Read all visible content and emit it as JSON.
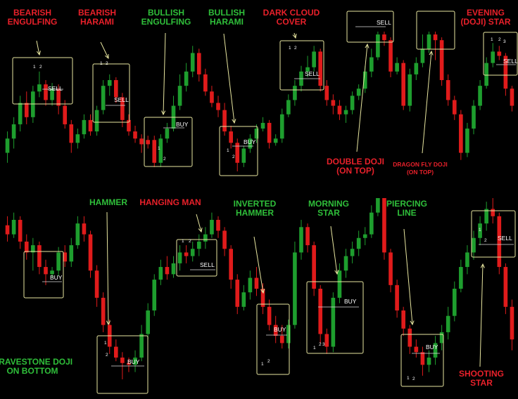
{
  "colors": {
    "bullish": "#1e9e2e",
    "bearish": "#e01b1b",
    "box": "#e8e6a0",
    "arrow": "#e8e6a0",
    "label_green": "#2fbf3a",
    "label_red": "#e8202a",
    "signal_text": "#ffffff",
    "background": "#000000"
  },
  "chart_data": [
    {
      "type": "candlestick",
      "panel": "top",
      "candles": [
        [
          0.15,
          0.25,
          0.08,
          0.3,
          1
        ],
        [
          0.25,
          0.35,
          0.18,
          0.4,
          1
        ],
        [
          0.35,
          0.5,
          0.3,
          0.55,
          1
        ],
        [
          0.5,
          0.4,
          0.35,
          0.58,
          0
        ],
        [
          0.4,
          0.58,
          0.36,
          0.62,
          1
        ],
        [
          0.58,
          0.63,
          0.54,
          0.72,
          1
        ],
        [
          0.63,
          0.52,
          0.48,
          0.66,
          0
        ],
        [
          0.52,
          0.6,
          0.48,
          0.64,
          1
        ],
        [
          0.6,
          0.48,
          0.42,
          0.63,
          0
        ],
        [
          0.48,
          0.35,
          0.32,
          0.52,
          0
        ],
        [
          0.35,
          0.22,
          0.15,
          0.38,
          0
        ],
        [
          0.22,
          0.28,
          0.18,
          0.32,
          1
        ],
        [
          0.28,
          0.38,
          0.25,
          0.42,
          1
        ],
        [
          0.38,
          0.3,
          0.27,
          0.42,
          0
        ],
        [
          0.3,
          0.45,
          0.27,
          0.48,
          1
        ],
        [
          0.45,
          0.62,
          0.42,
          0.66,
          1
        ],
        [
          0.62,
          0.66,
          0.55,
          0.7,
          1
        ],
        [
          0.66,
          0.54,
          0.5,
          0.68,
          0
        ],
        [
          0.54,
          0.38,
          0.33,
          0.57,
          0
        ],
        [
          0.38,
          0.3,
          0.27,
          0.42,
          0
        ],
        [
          0.3,
          0.25,
          0.22,
          0.34,
          0
        ],
        [
          0.25,
          0.21,
          0.15,
          0.28,
          0
        ],
        [
          0.21,
          0.24,
          0.18,
          0.27,
          0
        ],
        [
          0.24,
          0.08,
          0.05,
          0.27,
          0
        ],
        [
          0.08,
          0.25,
          0.05,
          0.28,
          1
        ],
        [
          0.25,
          0.32,
          0.22,
          0.36,
          1
        ],
        [
          0.32,
          0.48,
          0.3,
          0.55,
          1
        ],
        [
          0.48,
          0.62,
          0.45,
          0.7,
          1
        ],
        [
          0.62,
          0.72,
          0.58,
          0.78,
          1
        ],
        [
          0.72,
          0.85,
          0.68,
          0.9,
          1
        ],
        [
          0.85,
          0.7,
          0.65,
          0.88,
          0
        ],
        [
          0.7,
          0.58,
          0.55,
          0.74,
          0
        ],
        [
          0.58,
          0.5,
          0.47,
          0.62,
          0
        ],
        [
          0.5,
          0.45,
          0.4,
          0.55,
          0
        ],
        [
          0.45,
          0.3,
          0.27,
          0.5,
          0
        ],
        [
          0.3,
          0.22,
          0.18,
          0.34,
          0
        ],
        [
          0.22,
          0.08,
          0.02,
          0.25,
          0
        ],
        [
          0.08,
          0.18,
          0.05,
          0.2,
          1
        ],
        [
          0.18,
          0.25,
          0.15,
          0.28,
          1
        ],
        [
          0.25,
          0.32,
          0.22,
          0.35,
          1
        ],
        [
          0.32,
          0.36,
          0.3,
          0.4,
          1
        ],
        [
          0.36,
          0.22,
          0.18,
          0.38,
          0
        ],
        [
          0.22,
          0.25,
          0.2,
          0.28,
          1
        ],
        [
          0.25,
          0.42,
          0.22,
          0.46,
          1
        ],
        [
          0.42,
          0.52,
          0.4,
          0.56,
          1
        ],
        [
          0.52,
          0.62,
          0.48,
          0.66,
          1
        ],
        [
          0.62,
          0.72,
          0.58,
          0.76,
          1
        ],
        [
          0.72,
          0.75,
          0.68,
          0.83,
          1
        ],
        [
          0.75,
          0.86,
          0.72,
          0.9,
          1
        ],
        [
          0.86,
          0.62,
          0.58,
          0.88,
          0
        ],
        [
          0.62,
          0.52,
          0.48,
          0.66,
          0
        ],
        [
          0.52,
          0.48,
          0.42,
          0.56,
          0
        ],
        [
          0.48,
          0.42,
          0.38,
          0.52,
          0
        ],
        [
          0.42,
          0.45,
          0.36,
          0.48,
          1
        ],
        [
          0.45,
          0.55,
          0.42,
          0.58,
          1
        ],
        [
          0.55,
          0.6,
          0.52,
          0.63,
          1
        ],
        [
          0.6,
          0.72,
          0.57,
          0.76,
          1
        ],
        [
          0.72,
          0.82,
          0.68,
          0.88,
          1
        ],
        [
          0.82,
          0.98,
          0.8,
          1.0,
          1
        ],
        [
          0.98,
          0.94,
          0.9,
          1.0,
          0
        ],
        [
          0.94,
          0.72,
          0.68,
          0.96,
          0
        ],
        [
          0.72,
          0.78,
          0.7,
          0.82,
          1
        ],
        [
          0.78,
          0.48,
          0.45,
          0.8,
          0
        ],
        [
          0.48,
          0.7,
          0.44,
          0.74,
          1
        ],
        [
          0.7,
          0.78,
          0.66,
          0.82,
          1
        ],
        [
          0.78,
          0.88,
          0.75,
          0.98,
          1
        ],
        [
          0.88,
          0.98,
          0.85,
          1.0,
          1
        ],
        [
          0.98,
          0.94,
          0.8,
          1.0,
          0
        ],
        [
          0.94,
          0.66,
          0.62,
          0.96,
          0
        ],
        [
          0.66,
          0.52,
          0.48,
          0.7,
          0
        ],
        [
          0.52,
          0.42,
          0.38,
          0.55,
          0
        ],
        [
          0.42,
          0.15,
          0.1,
          0.45,
          0
        ],
        [
          0.15,
          0.32,
          0.12,
          0.36,
          1
        ],
        [
          0.32,
          0.48,
          0.28,
          0.52,
          1
        ],
        [
          0.48,
          0.62,
          0.45,
          0.66,
          1
        ],
        [
          0.62,
          0.78,
          0.6,
          0.82,
          1
        ],
        [
          0.78,
          0.86,
          0.75,
          0.92,
          1
        ],
        [
          0.86,
          0.83,
          0.8,
          0.9,
          0
        ],
        [
          0.83,
          0.6,
          0.55,
          0.85,
          0
        ],
        [
          0.6,
          0.48,
          0.44,
          0.62,
          0
        ]
      ]
    },
    {
      "type": "candlestick",
      "panel": "bottom",
      "candles": [
        [
          0.85,
          0.8,
          0.76,
          0.9,
          0
        ],
        [
          0.8,
          0.88,
          0.78,
          0.92,
          1
        ],
        [
          0.88,
          0.76,
          0.72,
          0.9,
          0
        ],
        [
          0.76,
          0.7,
          0.66,
          0.8,
          0
        ],
        [
          0.7,
          0.74,
          0.6,
          0.78,
          1
        ],
        [
          0.74,
          0.62,
          0.58,
          0.76,
          0
        ],
        [
          0.62,
          0.58,
          0.52,
          0.66,
          0
        ],
        [
          0.58,
          0.6,
          0.56,
          0.62,
          1
        ],
        [
          0.6,
          0.7,
          0.57,
          0.73,
          1
        ],
        [
          0.7,
          0.65,
          0.62,
          0.74,
          0
        ],
        [
          0.65,
          0.74,
          0.62,
          0.78,
          1
        ],
        [
          0.74,
          0.86,
          0.72,
          0.9,
          1
        ],
        [
          0.86,
          0.8,
          0.76,
          0.9,
          0
        ],
        [
          0.8,
          0.6,
          0.56,
          0.82,
          0
        ],
        [
          0.6,
          0.45,
          0.4,
          0.63,
          0
        ],
        [
          0.45,
          0.3,
          0.26,
          0.48,
          0
        ],
        [
          0.3,
          0.18,
          0.14,
          0.33,
          0
        ],
        [
          0.18,
          0.12,
          0.1,
          0.22,
          0
        ],
        [
          0.12,
          0.09,
          0.0,
          0.15,
          0
        ],
        [
          0.09,
          0.08,
          0.04,
          0.12,
          0
        ],
        [
          0.08,
          0.12,
          0.04,
          0.16,
          1
        ],
        [
          0.12,
          0.25,
          0.1,
          0.3,
          1
        ],
        [
          0.25,
          0.38,
          0.22,
          0.42,
          1
        ],
        [
          0.38,
          0.55,
          0.35,
          0.58,
          1
        ],
        [
          0.55,
          0.62,
          0.52,
          0.66,
          1
        ],
        [
          0.62,
          0.58,
          0.55,
          0.68,
          0
        ],
        [
          0.58,
          0.64,
          0.56,
          0.68,
          1
        ],
        [
          0.64,
          0.7,
          0.6,
          0.74,
          1
        ],
        [
          0.7,
          0.68,
          0.64,
          0.74,
          0
        ],
        [
          0.68,
          0.72,
          0.65,
          0.76,
          1
        ],
        [
          0.72,
          0.76,
          0.68,
          0.8,
          1
        ],
        [
          0.76,
          0.8,
          0.72,
          0.84,
          1
        ],
        [
          0.8,
          0.88,
          0.78,
          0.92,
          1
        ],
        [
          0.88,
          0.82,
          0.78,
          0.9,
          0
        ],
        [
          0.82,
          0.72,
          0.68,
          0.84,
          0
        ],
        [
          0.72,
          0.55,
          0.5,
          0.74,
          0
        ],
        [
          0.55,
          0.4,
          0.36,
          0.58,
          0
        ],
        [
          0.4,
          0.48,
          0.38,
          0.52,
          1
        ],
        [
          0.48,
          0.56,
          0.44,
          0.6,
          1
        ],
        [
          0.56,
          0.5,
          0.46,
          0.62,
          0
        ],
        [
          0.5,
          0.4,
          0.36,
          0.53,
          0
        ],
        [
          0.4,
          0.3,
          0.27,
          0.44,
          0
        ],
        [
          0.3,
          0.24,
          0.2,
          0.35,
          0
        ],
        [
          0.24,
          0.2,
          0.17,
          0.3,
          0
        ],
        [
          0.2,
          0.3,
          0.17,
          0.33,
          1
        ],
        [
          0.3,
          0.7,
          0.28,
          0.76,
          1
        ],
        [
          0.7,
          0.84,
          0.66,
          0.88,
          1
        ],
        [
          0.84,
          0.74,
          0.7,
          0.86,
          0
        ],
        [
          0.74,
          0.5,
          0.46,
          0.76,
          0
        ],
        [
          0.5,
          0.25,
          0.2,
          0.52,
          0
        ],
        [
          0.25,
          0.18,
          0.14,
          0.28,
          0
        ],
        [
          0.18,
          0.45,
          0.15,
          0.48,
          1
        ],
        [
          0.45,
          0.6,
          0.42,
          0.64,
          1
        ],
        [
          0.6,
          0.68,
          0.56,
          0.72,
          1
        ],
        [
          0.68,
          0.72,
          0.64,
          0.76,
          1
        ],
        [
          0.72,
          0.78,
          0.68,
          0.82,
          1
        ],
        [
          0.78,
          0.8,
          0.74,
          0.84,
          1
        ],
        [
          0.8,
          0.92,
          0.78,
          0.96,
          1
        ],
        [
          0.92,
          1.0,
          0.9,
          1.0,
          1
        ],
        [
          1.0,
          0.7,
          0.66,
          1.0,
          0
        ],
        [
          0.7,
          0.52,
          0.48,
          0.72,
          0
        ],
        [
          0.52,
          0.38,
          0.34,
          0.55,
          0
        ],
        [
          0.38,
          0.28,
          0.24,
          0.4,
          0
        ],
        [
          0.28,
          0.18,
          0.14,
          0.3,
          0
        ],
        [
          0.18,
          0.15,
          0.12,
          0.22,
          0
        ],
        [
          0.15,
          0.08,
          0.02,
          0.18,
          0
        ],
        [
          0.08,
          0.12,
          0.04,
          0.16,
          1
        ],
        [
          0.12,
          0.2,
          0.08,
          0.24,
          1
        ],
        [
          0.2,
          0.26,
          0.16,
          0.3,
          1
        ],
        [
          0.26,
          0.35,
          0.22,
          0.4,
          1
        ],
        [
          0.35,
          0.5,
          0.32,
          0.54,
          1
        ],
        [
          0.5,
          0.62,
          0.48,
          0.66,
          1
        ],
        [
          0.62,
          0.7,
          0.58,
          0.74,
          1
        ],
        [
          0.7,
          0.78,
          0.66,
          0.82,
          1
        ],
        [
          0.78,
          0.86,
          0.74,
          0.9,
          1
        ],
        [
          0.86,
          0.94,
          0.82,
          0.98,
          1
        ],
        [
          0.94,
          0.9,
          0.86,
          1.0,
          0
        ],
        [
          0.9,
          0.62,
          0.58,
          0.92,
          0
        ],
        [
          0.62,
          0.4,
          0.36,
          0.64,
          0
        ],
        [
          0.4,
          0.22,
          0.16,
          0.44,
          0
        ]
      ]
    }
  ],
  "patterns": [
    {
      "title": [
        "BEARISH",
        "ENGULFING"
      ],
      "color": "red",
      "signal": "SELL",
      "numbers": [
        "1",
        "2"
      ]
    },
    {
      "title": [
        "BEARISH",
        "HARAMI"
      ],
      "color": "red",
      "signal": "SELL",
      "numbers": [
        "1",
        "2"
      ]
    },
    {
      "title": [
        "BULLISH",
        "ENGULFING"
      ],
      "color": "green",
      "signal": "BUY",
      "numbers": [
        "1",
        "2"
      ]
    },
    {
      "title": [
        "BULLISH",
        "HARAMI"
      ],
      "color": "green",
      "signal": "BUY",
      "numbers": [
        "1",
        "2"
      ]
    },
    {
      "title": [
        "DARK CLOUD",
        "COVER"
      ],
      "color": "red",
      "signal": "SELL",
      "numbers": [
        "1",
        "2"
      ]
    },
    {
      "title": [
        "DOUBLE DOJI",
        "(ON TOP)"
      ],
      "color": "red",
      "signal": "SELL",
      "numbers": []
    },
    {
      "title": [
        "DRAGON FLY DOJI",
        "(ON TOP)"
      ],
      "color": "red",
      "signal": "",
      "numbers": []
    },
    {
      "title": [
        "EVENING",
        "(DOJI) STAR"
      ],
      "color": "red",
      "signal": "SELL",
      "numbers": [
        "1",
        "2",
        "3"
      ]
    },
    {
      "title": [
        "GRAVESTONE DOJI",
        "ON BOTTOM"
      ],
      "color": "green",
      "signal": "BUY",
      "numbers": []
    },
    {
      "title": [
        "HAMMER"
      ],
      "color": "green",
      "signal": "BUY",
      "numbers": [
        "1",
        "2"
      ]
    },
    {
      "title": [
        "HANGING MAN"
      ],
      "color": "red",
      "signal": "SELL",
      "numbers": [
        "1",
        "2"
      ]
    },
    {
      "title": [
        "INVERTED",
        "HAMMER"
      ],
      "color": "green",
      "signal": "BUY",
      "numbers": [
        "1",
        "2"
      ]
    },
    {
      "title": [
        "MORNING",
        "STAR"
      ],
      "color": "green",
      "signal": "BUY",
      "numbers": [
        "1",
        "2",
        "3"
      ]
    },
    {
      "title": [
        "PIERCING",
        "LINE"
      ],
      "color": "green",
      "signal": "BUY",
      "numbers": [
        "1",
        "2"
      ]
    },
    {
      "title": [
        "SHOOTING",
        "STAR"
      ],
      "color": "red",
      "signal": "SELL",
      "numbers": [
        "1",
        "2"
      ]
    }
  ]
}
